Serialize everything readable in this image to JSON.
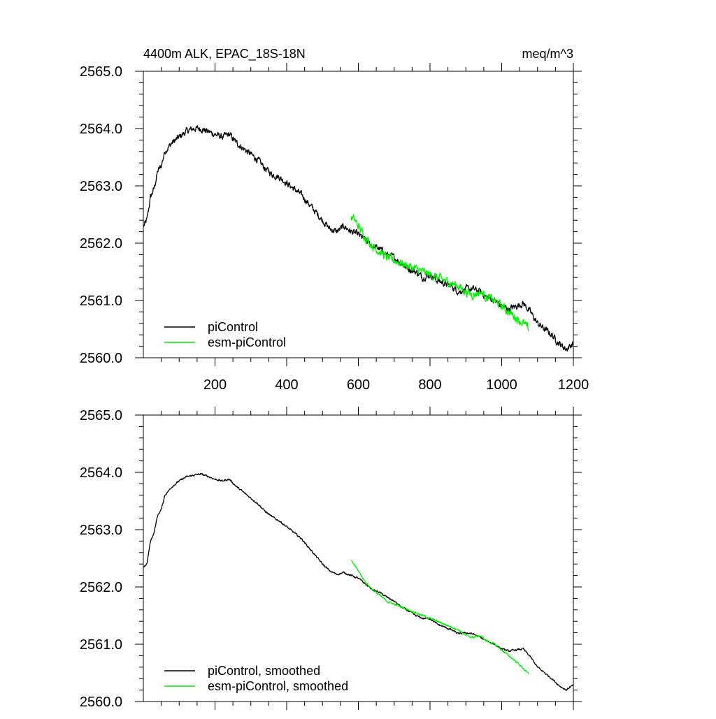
{
  "chart_data": [
    {
      "type": "line",
      "title": "4400m ALK, EPAC_18S-18N",
      "units": "meq/m^3",
      "xlabel": "",
      "ylabel": "",
      "xlim": [
        0,
        1200
      ],
      "ylim": [
        2560.0,
        2565.0
      ],
      "xticks": [
        200,
        400,
        600,
        800,
        1000,
        1200
      ],
      "xtick_labels": [
        "200",
        "400",
        "600",
        "800",
        "1000",
        "1200"
      ],
      "yticks": [
        2560.0,
        2561.0,
        2562.0,
        2563.0,
        2564.0,
        2565.0
      ],
      "ytick_labels": [
        "2560.0",
        "2561.0",
        "2562.0",
        "2563.0",
        "2564.0",
        "2565.0"
      ],
      "legend_position": "bottom-left",
      "series": [
        {
          "name": "piControl",
          "color": "#000000",
          "noise": 0.09,
          "x": [
            1,
            10,
            20,
            30,
            40,
            50,
            60,
            80,
            100,
            120,
            140,
            160,
            180,
            200,
            220,
            240,
            260,
            280,
            300,
            320,
            340,
            360,
            380,
            400,
            420,
            440,
            460,
            480,
            500,
            520,
            540,
            560,
            580,
            600,
            620,
            640,
            660,
            680,
            700,
            720,
            740,
            760,
            780,
            800,
            820,
            840,
            860,
            880,
            900,
            920,
            940,
            960,
            980,
            1000,
            1020,
            1040,
            1060,
            1080,
            1100,
            1120,
            1140,
            1160,
            1180,
            1190,
            1200
          ],
          "values": [
            2562.3,
            2562.4,
            2562.8,
            2562.95,
            2563.25,
            2563.35,
            2563.6,
            2563.75,
            2563.85,
            2563.95,
            2564.0,
            2564.0,
            2563.95,
            2563.9,
            2563.85,
            2563.9,
            2563.75,
            2563.65,
            2563.55,
            2563.45,
            2563.3,
            2563.2,
            2563.15,
            2563.05,
            2562.95,
            2562.85,
            2562.7,
            2562.55,
            2562.4,
            2562.25,
            2562.2,
            2562.3,
            2562.2,
            2562.15,
            2562.05,
            2561.95,
            2561.9,
            2561.8,
            2561.75,
            2561.65,
            2561.55,
            2561.5,
            2561.4,
            2561.45,
            2561.35,
            2561.3,
            2561.25,
            2561.15,
            2561.2,
            2561.2,
            2561.15,
            2561.05,
            2561.0,
            2560.9,
            2560.85,
            2560.9,
            2560.95,
            2560.8,
            2560.6,
            2560.5,
            2560.4,
            2560.25,
            2560.15,
            2560.2,
            2560.25
          ]
        },
        {
          "name": "esm-piControl",
          "color": "#00ee00",
          "noise": 0.12,
          "x": [
            580,
            590,
            600,
            610,
            620,
            640,
            660,
            680,
            700,
            720,
            740,
            760,
            780,
            800,
            820,
            840,
            860,
            880,
            900,
            920,
            940,
            960,
            980,
            1000,
            1020,
            1040,
            1060,
            1075
          ],
          "values": [
            2562.45,
            2562.4,
            2562.3,
            2562.2,
            2562.1,
            2561.95,
            2561.85,
            2561.75,
            2561.7,
            2561.65,
            2561.6,
            2561.55,
            2561.5,
            2561.45,
            2561.4,
            2561.35,
            2561.3,
            2561.25,
            2561.15,
            2561.1,
            2561.15,
            2561.05,
            2561.0,
            2560.9,
            2560.8,
            2560.7,
            2560.6,
            2560.5
          ]
        }
      ]
    },
    {
      "type": "line",
      "title": "",
      "xlabel": "",
      "ylabel": "",
      "xlim": [
        0,
        1200
      ],
      "ylim": [
        2560.0,
        2565.0
      ],
      "xticks": [
        200,
        400,
        600,
        800,
        1000,
        1200
      ],
      "yticks": [
        2560.0,
        2561.0,
        2562.0,
        2563.0,
        2564.0,
        2565.0
      ],
      "ytick_labels": [
        "2560.0",
        "2561.0",
        "2562.0",
        "2563.0",
        "2564.0",
        "2565.0"
      ],
      "legend_position": "bottom-left",
      "series": [
        {
          "name": "piControl, smoothed",
          "color": "#000000",
          "noise": 0.025,
          "x": [
            1,
            10,
            20,
            30,
            40,
            50,
            60,
            80,
            100,
            120,
            140,
            160,
            180,
            200,
            220,
            240,
            260,
            280,
            300,
            320,
            340,
            360,
            380,
            400,
            420,
            440,
            460,
            480,
            500,
            520,
            540,
            560,
            580,
            600,
            620,
            640,
            660,
            680,
            700,
            720,
            740,
            760,
            780,
            800,
            820,
            840,
            860,
            880,
            900,
            920,
            940,
            960,
            980,
            1000,
            1020,
            1040,
            1060,
            1080,
            1100,
            1120,
            1140,
            1160,
            1180,
            1190,
            1200
          ],
          "values": [
            2562.35,
            2562.4,
            2562.8,
            2562.95,
            2563.25,
            2563.35,
            2563.6,
            2563.75,
            2563.85,
            2563.92,
            2563.95,
            2563.97,
            2563.93,
            2563.88,
            2563.85,
            2563.88,
            2563.75,
            2563.65,
            2563.55,
            2563.45,
            2563.32,
            2563.22,
            2563.15,
            2563.05,
            2562.95,
            2562.85,
            2562.7,
            2562.55,
            2562.4,
            2562.28,
            2562.22,
            2562.25,
            2562.2,
            2562.15,
            2562.05,
            2561.95,
            2561.9,
            2561.82,
            2561.75,
            2561.65,
            2561.58,
            2561.5,
            2561.45,
            2561.45,
            2561.35,
            2561.3,
            2561.25,
            2561.18,
            2561.2,
            2561.18,
            2561.12,
            2561.05,
            2561.0,
            2560.92,
            2560.88,
            2560.9,
            2560.92,
            2560.78,
            2560.6,
            2560.5,
            2560.4,
            2560.28,
            2560.2,
            2560.25,
            2560.28
          ]
        },
        {
          "name": "esm-piControl, smoothed",
          "color": "#00ee00",
          "noise": 0.03,
          "x": [
            580,
            590,
            600,
            610,
            620,
            640,
            660,
            680,
            700,
            720,
            740,
            760,
            780,
            800,
            820,
            840,
            860,
            880,
            900,
            920,
            940,
            960,
            980,
            1000,
            1020,
            1040,
            1060,
            1075
          ],
          "values": [
            2562.45,
            2562.38,
            2562.28,
            2562.18,
            2562.08,
            2561.95,
            2561.85,
            2561.75,
            2561.7,
            2561.65,
            2561.6,
            2561.55,
            2561.5,
            2561.45,
            2561.4,
            2561.35,
            2561.3,
            2561.25,
            2561.15,
            2561.12,
            2561.15,
            2561.05,
            2561.0,
            2560.9,
            2560.8,
            2560.7,
            2560.58,
            2560.48
          ]
        }
      ]
    }
  ]
}
